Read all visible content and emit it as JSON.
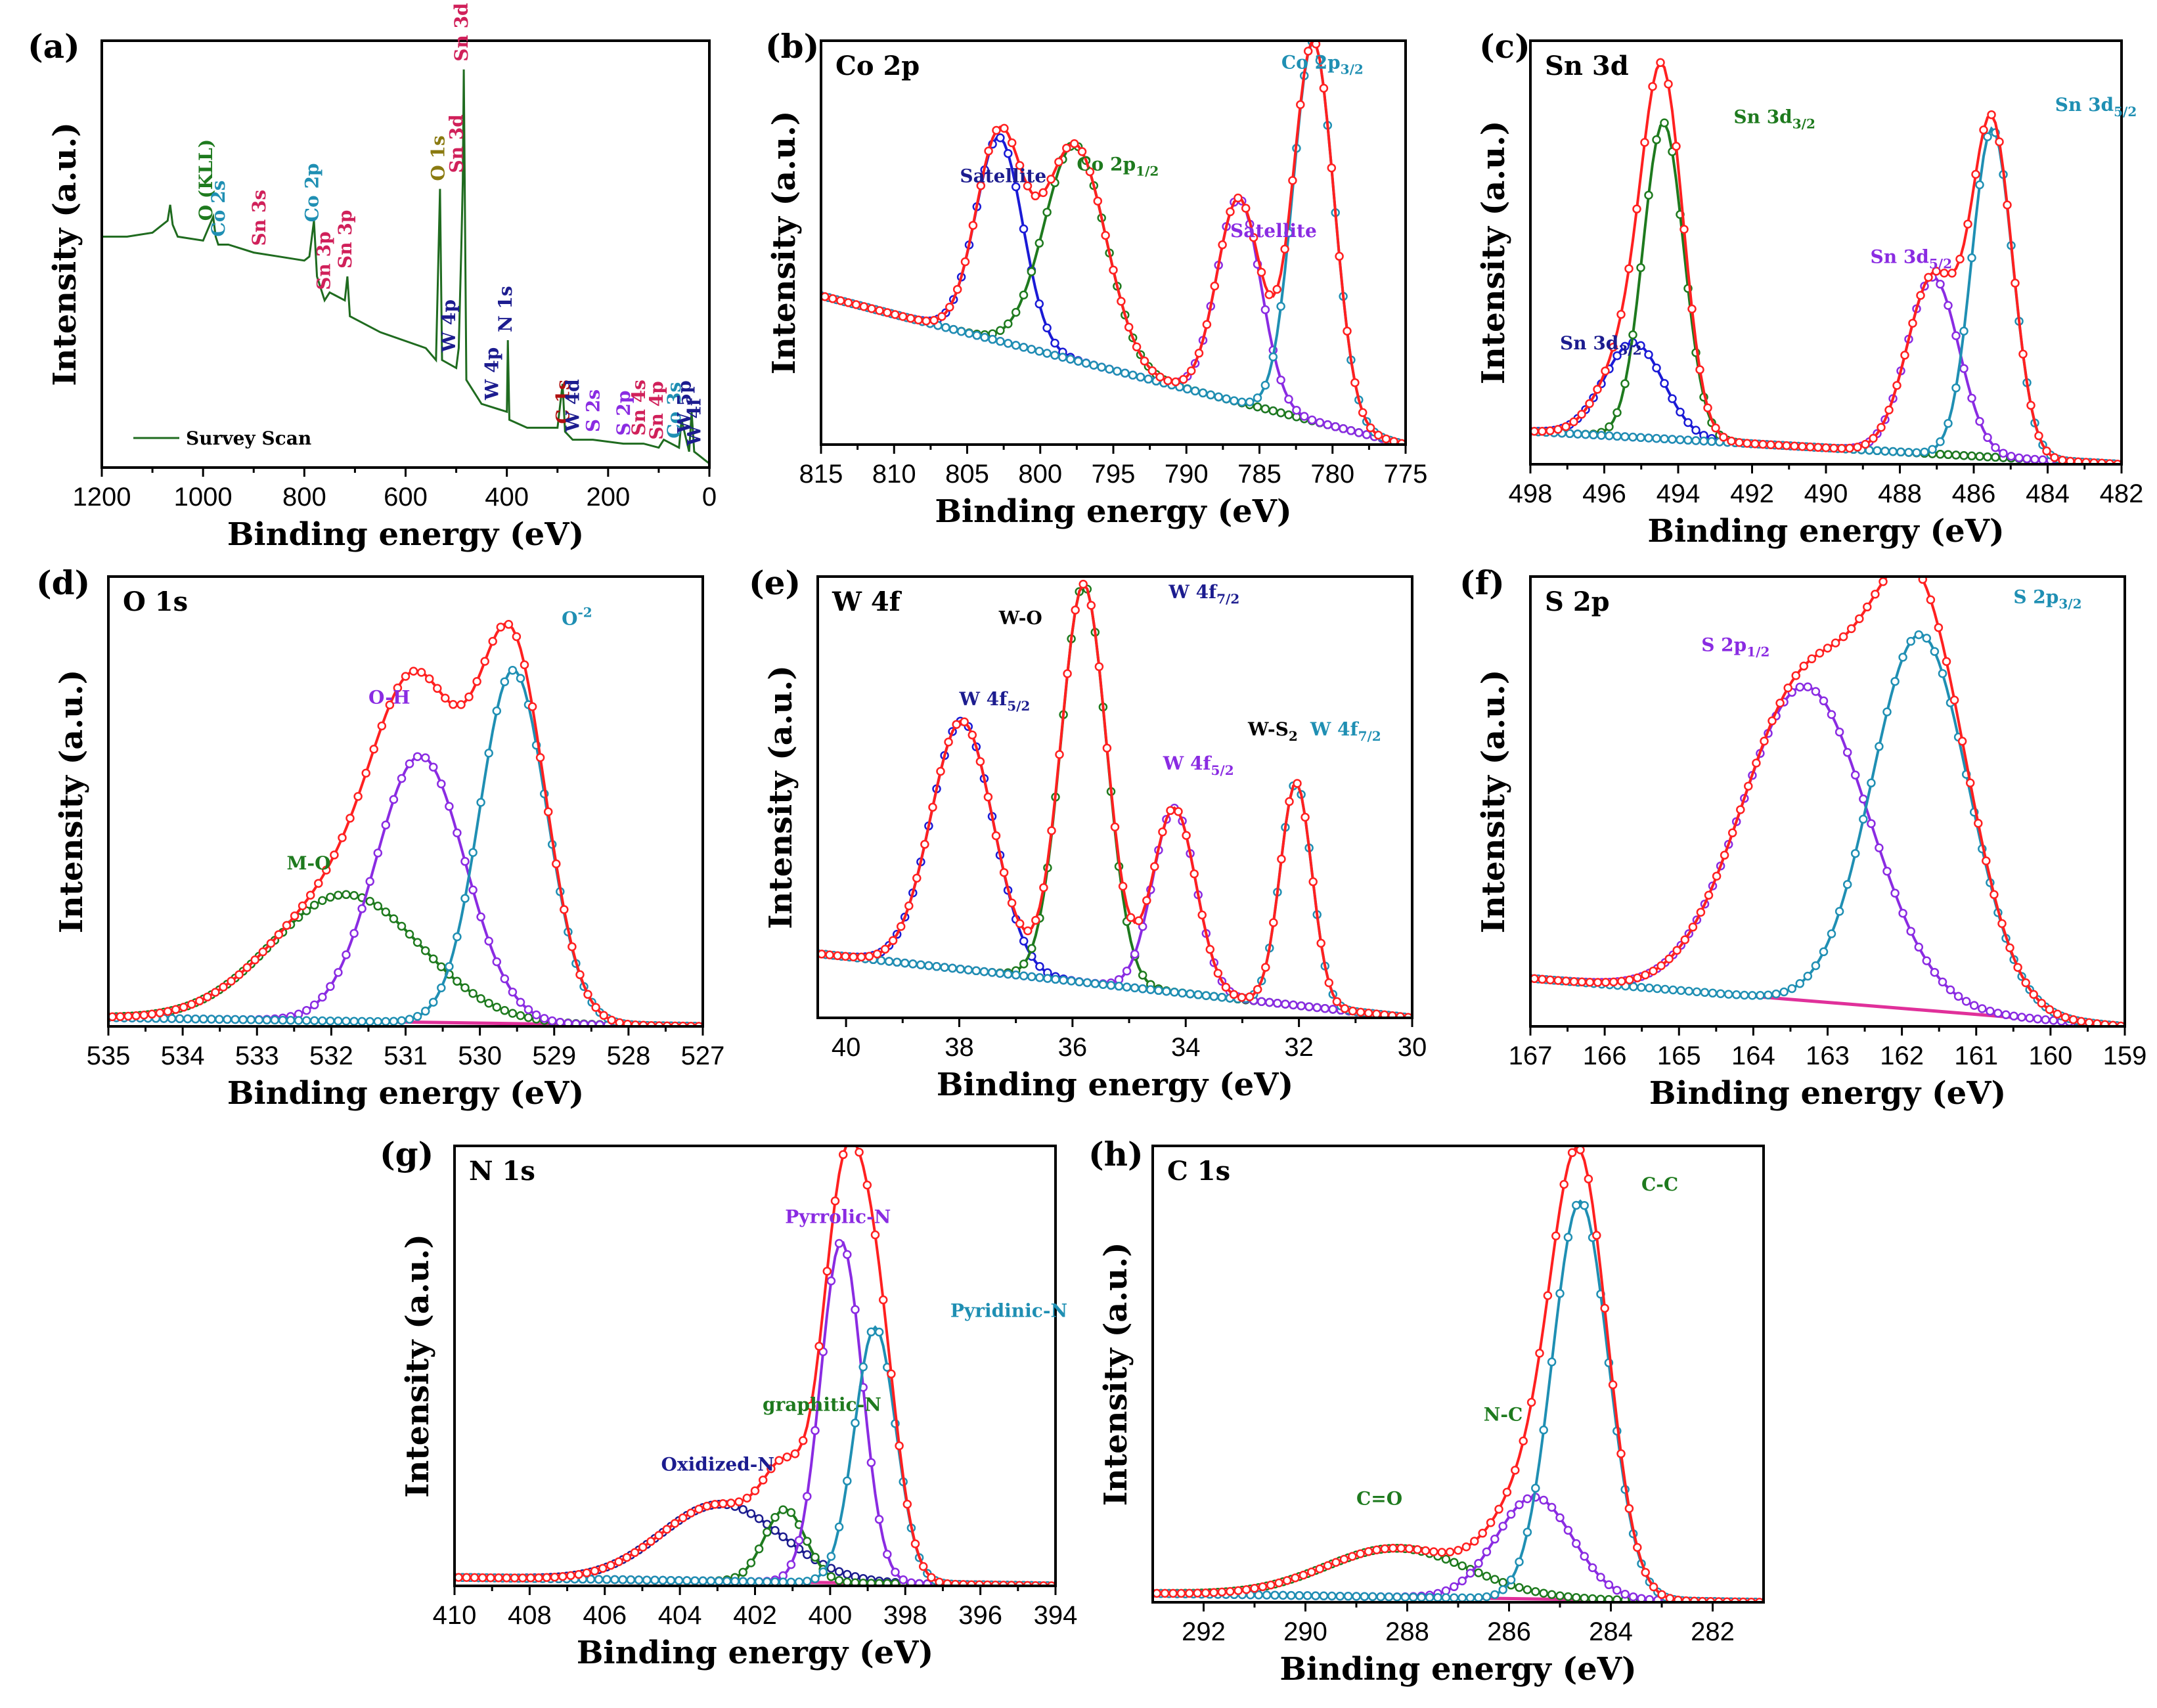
{
  "figure": {
    "xlabel": "Binding energy (eV)",
    "ylabel": "Intensity (a.u.)"
  },
  "colors": {
    "envelope": "#ff2020",
    "survey": "#1f6b1f",
    "blue": "#1a1ad6",
    "navy": "#1c1c8f",
    "green": "#1e7a1e",
    "violet": "#8a2be2",
    "teal": "#1f8fb3",
    "magenta": "#e0309a",
    "olive": "#8a7a10",
    "darkred": "#b01010",
    "crimson": "#d0205a"
  },
  "chart_data": [
    {
      "id": "a",
      "panel_label": "(a)",
      "title": "",
      "type": "line",
      "xlim": [
        1200,
        0
      ],
      "xticks": [
        1200,
        1000,
        800,
        600,
        400,
        200,
        0
      ],
      "legend": {
        "label": "Survey Scan",
        "placement": "bottom-left"
      },
      "series": [
        {
          "name": "Survey Scan",
          "color_key": "survey",
          "x": [
            1200,
            1150,
            1100,
            1070,
            1065,
            1060,
            1050,
            1000,
            980,
            975,
            970,
            950,
            900,
            850,
            800,
            790,
            781,
            775,
            760,
            750,
            720,
            715,
            710,
            650,
            560,
            540,
            532,
            528,
            500,
            495,
            490,
            487,
            485,
            480,
            450,
            400,
            398,
            395,
            360,
            300,
            290,
            285,
            270,
            230,
            170,
            130,
            100,
            90,
            60,
            55,
            40,
            35,
            30,
            20,
            10,
            0
          ],
          "y": [
            0.58,
            0.58,
            0.59,
            0.62,
            0.66,
            0.61,
            0.58,
            0.57,
            0.63,
            0.58,
            0.56,
            0.56,
            0.54,
            0.53,
            0.52,
            0.53,
            0.62,
            0.48,
            0.42,
            0.44,
            0.42,
            0.48,
            0.38,
            0.34,
            0.3,
            0.27,
            0.7,
            0.27,
            0.25,
            0.3,
            0.55,
            0.72,
            1.0,
            0.22,
            0.16,
            0.14,
            0.32,
            0.12,
            0.1,
            0.1,
            0.21,
            0.09,
            0.07,
            0.07,
            0.06,
            0.06,
            0.05,
            0.07,
            0.05,
            0.12,
            0.04,
            0.14,
            0.04,
            0.03,
            0.02,
            0.01
          ]
        }
      ],
      "annotations": [
        {
          "text": "O (KLL)",
          "x": 990,
          "color_key": "green"
        },
        {
          "text": "Co 2s",
          "x": 965,
          "color_key": "teal"
        },
        {
          "text": "Sn 3s",
          "x": 885,
          "color_key": "crimson"
        },
        {
          "text": "Co 2p",
          "x": 780,
          "color_key": "teal"
        },
        {
          "text": "Sn 3p",
          "x": 757,
          "color_key": "crimson"
        },
        {
          "text": "Sn 3p",
          "x": 715,
          "color_key": "crimson"
        },
        {
          "text": "O 1s",
          "x": 531,
          "color_key": "olive"
        },
        {
          "text": "W 4p",
          "x": 510,
          "color_key": "navy"
        },
        {
          "text": "Sn 3d",
          "x": 495,
          "color_key": "crimson"
        },
        {
          "text": "Sn 3d",
          "x": 485,
          "color_key": "crimson"
        },
        {
          "text": "N 1s",
          "x": 398,
          "color_key": "navy"
        },
        {
          "text": "W 4p",
          "x": 425,
          "color_key": "navy"
        },
        {
          "text": "C 1s",
          "x": 285,
          "color_key": "darkred"
        },
        {
          "text": "W 4d",
          "x": 265,
          "color_key": "navy"
        },
        {
          "text": "S 2s",
          "x": 225,
          "color_key": "violet"
        },
        {
          "text": "S 2p",
          "x": 165,
          "color_key": "violet"
        },
        {
          "text": "Sn 4s",
          "x": 135,
          "color_key": "crimson"
        },
        {
          "text": "Sn 4p",
          "x": 100,
          "color_key": "crimson"
        },
        {
          "text": "Co 3s",
          "x": 65,
          "color_key": "teal"
        },
        {
          "text": "W 5p",
          "x": 45,
          "color_key": "navy"
        },
        {
          "text": "W 4f",
          "x": 25,
          "color_key": "navy"
        }
      ]
    },
    {
      "id": "b",
      "panel_label": "(b)",
      "title": "Co 2p",
      "type": "line",
      "xlim": [
        815,
        775
      ],
      "xticks": [
        815,
        810,
        805,
        800,
        795,
        790,
        785,
        780,
        775
      ],
      "baseline": {
        "x0": 815,
        "y0": 0.38,
        "x1": 775,
        "y1": 0.0,
        "color_key": "violet"
      },
      "peaks": [
        {
          "name": "Satellite",
          "center": 802.8,
          "height": 0.52,
          "sigma": 1.6,
          "color_key": "blue"
        },
        {
          "name": "Co 2p1/2",
          "center": 797.6,
          "height": 0.55,
          "sigma": 2.1,
          "color_key": "green"
        },
        {
          "name": "Satellite",
          "center": 786.4,
          "height": 0.52,
          "sigma": 1.5,
          "color_key": "violet"
        },
        {
          "name": "Co 2p3/2",
          "center": 781.3,
          "height": 0.97,
          "sigma": 1.4,
          "color_key": "teal"
        }
      ],
      "labels": [
        {
          "base": "Satellite",
          "sub": "",
          "x": 805.5,
          "y": 0.67,
          "color_key": "navy"
        },
        {
          "base": "Co 2p",
          "sub": "1/2",
          "x": 797.5,
          "y": 0.7,
          "color_key": "green"
        },
        {
          "base": "Satellite",
          "sub": "",
          "x": 787.0,
          "y": 0.53,
          "color_key": "violet"
        },
        {
          "base": "Co 2p",
          "sub": "3/2",
          "x": 783.5,
          "y": 0.96,
          "color_key": "teal"
        }
      ]
    },
    {
      "id": "c",
      "panel_label": "(c)",
      "title": "Sn 3d",
      "type": "line",
      "xlim": [
        498,
        482
      ],
      "xticks": [
        498,
        496,
        494,
        492,
        490,
        488,
        486,
        484,
        482
      ],
      "baseline": {
        "x0": 498,
        "y0": 0.08,
        "x1": 482,
        "y1": 0.0,
        "color_key": "violet"
      },
      "peaks": [
        {
          "name": "Sn 3d3/2",
          "center": 495.2,
          "height": 0.23,
          "sigma": 0.8,
          "color_key": "blue"
        },
        {
          "name": "Sn 3d3/2",
          "center": 494.4,
          "height": 0.77,
          "sigma": 0.55,
          "color_key": "green"
        },
        {
          "name": "Sn 3d5/2",
          "center": 487.1,
          "height": 0.43,
          "sigma": 0.7,
          "color_key": "violet"
        },
        {
          "name": "Sn 3d5/2",
          "center": 485.5,
          "height": 0.8,
          "sigma": 0.55,
          "color_key": "teal"
        }
      ],
      "labels": [
        {
          "base": "Sn 3d",
          "sub": "3/2",
          "x": 497.2,
          "y": 0.28,
          "color_key": "navy"
        },
        {
          "base": "Sn 3d",
          "sub": "3/2",
          "x": 492.5,
          "y": 0.83,
          "color_key": "green"
        },
        {
          "base": "Sn 3d",
          "sub": "5/2",
          "x": 488.8,
          "y": 0.49,
          "color_key": "violet"
        },
        {
          "base": "Sn 3d",
          "sub": "5/2",
          "x": 483.8,
          "y": 0.86,
          "color_key": "teal"
        }
      ]
    },
    {
      "id": "d",
      "panel_label": "(d)",
      "title": "O 1s",
      "type": "line",
      "xlim": [
        535,
        527
      ],
      "xticks": [
        535,
        534,
        533,
        532,
        531,
        530,
        529,
        528,
        527
      ],
      "baseline": {
        "x0": 535,
        "y0": 0.02,
        "x1": 527,
        "y1": 0.0,
        "color_key": "magenta"
      },
      "peaks": [
        {
          "name": "M-O",
          "center": 531.8,
          "height": 0.29,
          "sigma": 1.0,
          "color_key": "green"
        },
        {
          "name": "O-H",
          "center": 530.8,
          "height": 0.61,
          "sigma": 0.6,
          "color_key": "violet"
        },
        {
          "name": "O-2",
          "center": 529.55,
          "height": 0.81,
          "sigma": 0.45,
          "color_key": "teal"
        }
      ],
      "labels": [
        {
          "base": "M-O",
          "sub": "",
          "x": 532.6,
          "y": 0.36,
          "color_key": "green"
        },
        {
          "base": "O-H",
          "sub": "",
          "x": 531.5,
          "y": 0.74,
          "color_key": "violet"
        },
        {
          "base": "O",
          "sup": "-2",
          "x": 528.9,
          "y": 0.92,
          "color_key": "teal"
        }
      ]
    },
    {
      "id": "e",
      "panel_label": "(e)",
      "title": "W 4f",
      "type": "line",
      "xlim": [
        40.5,
        30
      ],
      "xticks": [
        40,
        38,
        36,
        34,
        32,
        30
      ],
      "baseline": {
        "x0": 40.5,
        "y0": 0.15,
        "x1": 30,
        "y1": 0.0,
        "color_key": "teal"
      },
      "peaks": [
        {
          "name": "W 4f5/2",
          "center": 37.95,
          "height": 0.58,
          "sigma": 0.55,
          "color_key": "blue"
        },
        {
          "name": "W 4f7/2",
          "center": 35.8,
          "height": 0.93,
          "sigma": 0.4,
          "color_key": "green"
        },
        {
          "name": "W 4f5/2",
          "center": 34.2,
          "height": 0.43,
          "sigma": 0.38,
          "color_key": "violet"
        },
        {
          "name": "W 4f7/2",
          "center": 32.05,
          "height": 0.52,
          "sigma": 0.28,
          "color_key": "teal"
        }
      ],
      "labels": [
        {
          "base": "W-O",
          "sub": "",
          "x": 37.3,
          "y": 0.92,
          "color_key": "black"
        },
        {
          "base": "W 4f",
          "sub": "5/2",
          "x": 38.0,
          "y": 0.73,
          "color_key": "navy"
        },
        {
          "base": "W 4f",
          "sub": "7/2",
          "x": 34.3,
          "y": 0.98,
          "color_key": "navy"
        },
        {
          "base": "W 4f",
          "sub": "5/2",
          "x": 34.4,
          "y": 0.58,
          "color_key": "violet"
        },
        {
          "base": "W-S",
          "sub": "2",
          "x": 32.9,
          "y": 0.66,
          "color_key": "black"
        },
        {
          "base": "W 4f",
          "sub": "7/2",
          "x": 31.8,
          "y": 0.66,
          "color_key": "teal"
        }
      ]
    },
    {
      "id": "f",
      "panel_label": "(f)",
      "title": "S 2p",
      "type": "line",
      "xlim": [
        167,
        159
      ],
      "xticks": [
        167,
        166,
        165,
        164,
        163,
        162,
        161,
        160,
        159
      ],
      "baseline": {
        "x0": 167,
        "y0": 0.11,
        "x1": 159,
        "y1": 0.0,
        "color_key": "magenta"
      },
      "peaks": [
        {
          "name": "S 2p1/2",
          "center": 163.3,
          "height": 0.72,
          "sigma": 0.85,
          "color_key": "violet"
        },
        {
          "name": "S 2p3/2",
          "center": 161.75,
          "height": 0.86,
          "sigma": 0.65,
          "color_key": "teal"
        }
      ],
      "labels": [
        {
          "base": "S 2p",
          "sub": "1/2",
          "x": 164.7,
          "y": 0.86,
          "color_key": "violet"
        },
        {
          "base": "S 2p",
          "sub": "3/2",
          "x": 160.5,
          "y": 0.97,
          "color_key": "teal"
        }
      ]
    },
    {
      "id": "g",
      "panel_label": "(g)",
      "title": "N 1s",
      "type": "line",
      "xlim": [
        410,
        394
      ],
      "xticks": [
        410,
        408,
        406,
        404,
        402,
        400,
        398,
        396,
        394
      ],
      "baseline": {
        "x0": 410,
        "y0": 0.02,
        "x1": 394,
        "y1": 0.0,
        "color_key": "magenta"
      },
      "peaks": [
        {
          "name": "Oxidized-N",
          "center": 402.9,
          "height": 0.18,
          "sigma": 1.6,
          "color_key": "navy"
        },
        {
          "name": "graphitic-N",
          "center": 401.2,
          "height": 0.17,
          "sigma": 0.55,
          "color_key": "green"
        },
        {
          "name": "Pyrrolic-N",
          "center": 399.7,
          "height": 0.8,
          "sigma": 0.55,
          "color_key": "violet"
        },
        {
          "name": "Pyridinic-N",
          "center": 398.8,
          "height": 0.6,
          "sigma": 0.55,
          "color_key": "teal"
        }
      ],
      "labels": [
        {
          "base": "Oxidized-N",
          "sub": "",
          "x": 404.5,
          "y": 0.27,
          "color_key": "navy"
        },
        {
          "base": "graphitic-N",
          "sub": "",
          "x": 401.8,
          "y": 0.41,
          "color_key": "green"
        },
        {
          "base": "Pyrrolic-N",
          "sub": "",
          "x": 401.2,
          "y": 0.85,
          "color_key": "violet"
        },
        {
          "base": "Pyridinic-N",
          "sub": "",
          "x": 396.8,
          "y": 0.63,
          "color_key": "teal"
        }
      ]
    },
    {
      "id": "h",
      "panel_label": "(h)",
      "title": "C 1s",
      "type": "line",
      "xlim": [
        293,
        281
      ],
      "xticks": [
        292,
        290,
        288,
        286,
        284,
        282
      ],
      "baseline": {
        "x0": 293,
        "y0": 0.02,
        "x1": 281,
        "y1": 0.0,
        "color_key": "magenta"
      },
      "peaks": [
        {
          "name": "C=O",
          "center": 288.2,
          "height": 0.11,
          "sigma": 1.4,
          "color_key": "green"
        },
        {
          "name": "N-C",
          "center": 285.5,
          "height": 0.23,
          "sigma": 0.75,
          "color_key": "violet"
        },
        {
          "name": "C-C",
          "center": 284.6,
          "height": 0.9,
          "sigma": 0.55,
          "color_key": "teal"
        }
      ],
      "labels": [
        {
          "base": "C=O",
          "sub": "",
          "x": 289.0,
          "y": 0.22,
          "color_key": "green"
        },
        {
          "base": "N-C",
          "sub": "",
          "x": 286.5,
          "y": 0.41,
          "color_key": "green"
        },
        {
          "base": "C-C",
          "sub": "",
          "x": 283.4,
          "y": 0.93,
          "color_key": "green"
        }
      ]
    }
  ]
}
